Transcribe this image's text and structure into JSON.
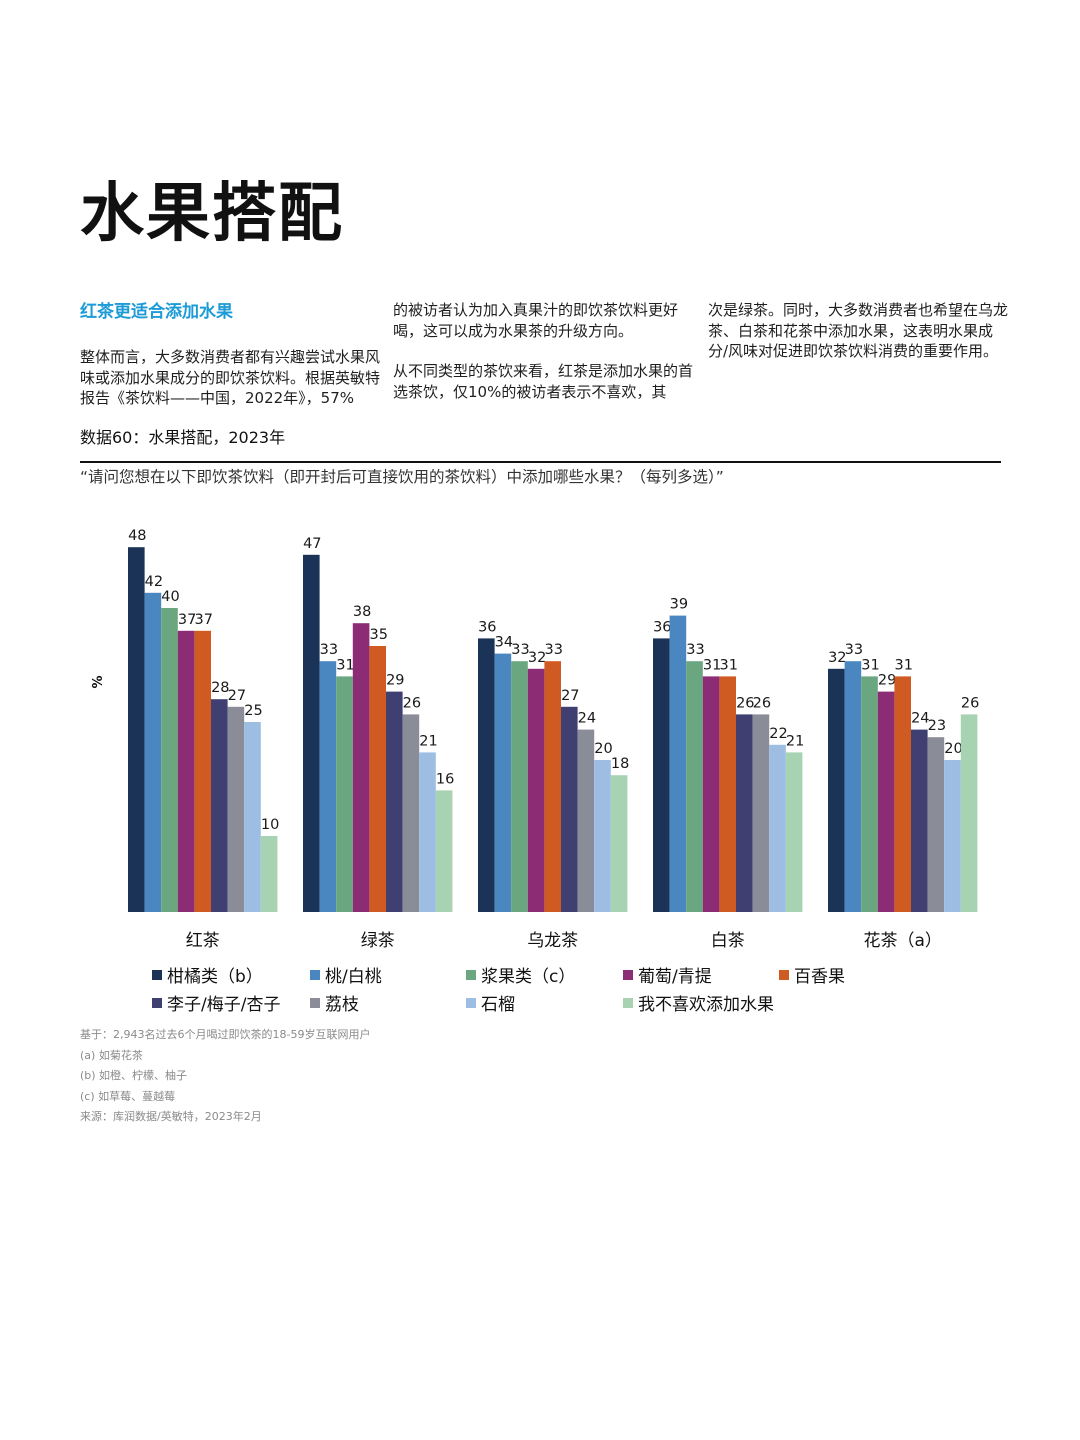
{
  "page": {
    "title": "水果搭配",
    "subhead": "红茶更适合添加水果",
    "col1_para": "整体而言，大多数消费者都有兴趣尝试水果风味或添加水果成分的即饮茶饮料。根据英敏特报告《茶饮料——中国，2022年》，57%",
    "col2_para1": "的被访者认为加入真果汁的即饮茶饮料更好喝，这可以成为水果茶的升级方向。",
    "col2_para2": "从不同类型的茶饮来看，红茶是添加水果的首选茶饮，仅10%的被访者表示不喜欢，其",
    "col3_para": "次是绿茶。同时，大多数消费者也希望在乌龙茶、白茶和花茶中添加水果，这表明水果成分/风味对促进即饮茶饮料消费的重要作用。",
    "figure_label": "数据60：水果搭配，2023年",
    "question": "“请问您想在以下即饮茶饮料（即开封后可直接饮用的茶饮料）中添加哪些水果？（每列多选）”",
    "notes": [
      "基于：2,943名过去6个月喝过即饮茶的18-59岁互联网用户",
      "(a) 如菊花茶",
      "(b) 如橙、柠檬、柚子",
      "(c) 如草莓、蔓越莓",
      "来源：库润数据/英敏特，2023年2月"
    ]
  },
  "chart_data": {
    "type": "bar",
    "ylabel": "%",
    "ylim": [
      0,
      50
    ],
    "grid": false,
    "legend_position": "bottom",
    "categories": [
      "红茶",
      "绿茶",
      "乌龙茶",
      "白茶",
      "花茶（a）"
    ],
    "series": [
      {
        "name": "柑橘类（b）",
        "color": "#1b3357",
        "values": [
          48,
          47,
          36,
          36,
          32
        ]
      },
      {
        "name": "桃/白桃",
        "color": "#4a86c0",
        "values": [
          42,
          33,
          34,
          39,
          33
        ]
      },
      {
        "name": "浆果类（c）",
        "color": "#6aa67f",
        "values": [
          40,
          31,
          33,
          33,
          31
        ]
      },
      {
        "name": "葡萄/青提",
        "color": "#8b2c74",
        "values": [
          37,
          38,
          32,
          31,
          29
        ]
      },
      {
        "name": "百香果",
        "color": "#cf5a22",
        "values": [
          37,
          35,
          33,
          31,
          31
        ]
      },
      {
        "name": "李子/梅子/杏子",
        "color": "#3f3f72",
        "values": [
          28,
          29,
          27,
          26,
          24
        ]
      },
      {
        "name": "荔枝",
        "color": "#8a8c98",
        "values": [
          27,
          26,
          24,
          26,
          23
        ]
      },
      {
        "name": "石榴",
        "color": "#9dbde3",
        "values": [
          25,
          21,
          20,
          22,
          20
        ]
      },
      {
        "name": "我不喜欢添加水果",
        "color": "#a8d3b3",
        "values": [
          10,
          16,
          18,
          21,
          26
        ]
      }
    ]
  }
}
